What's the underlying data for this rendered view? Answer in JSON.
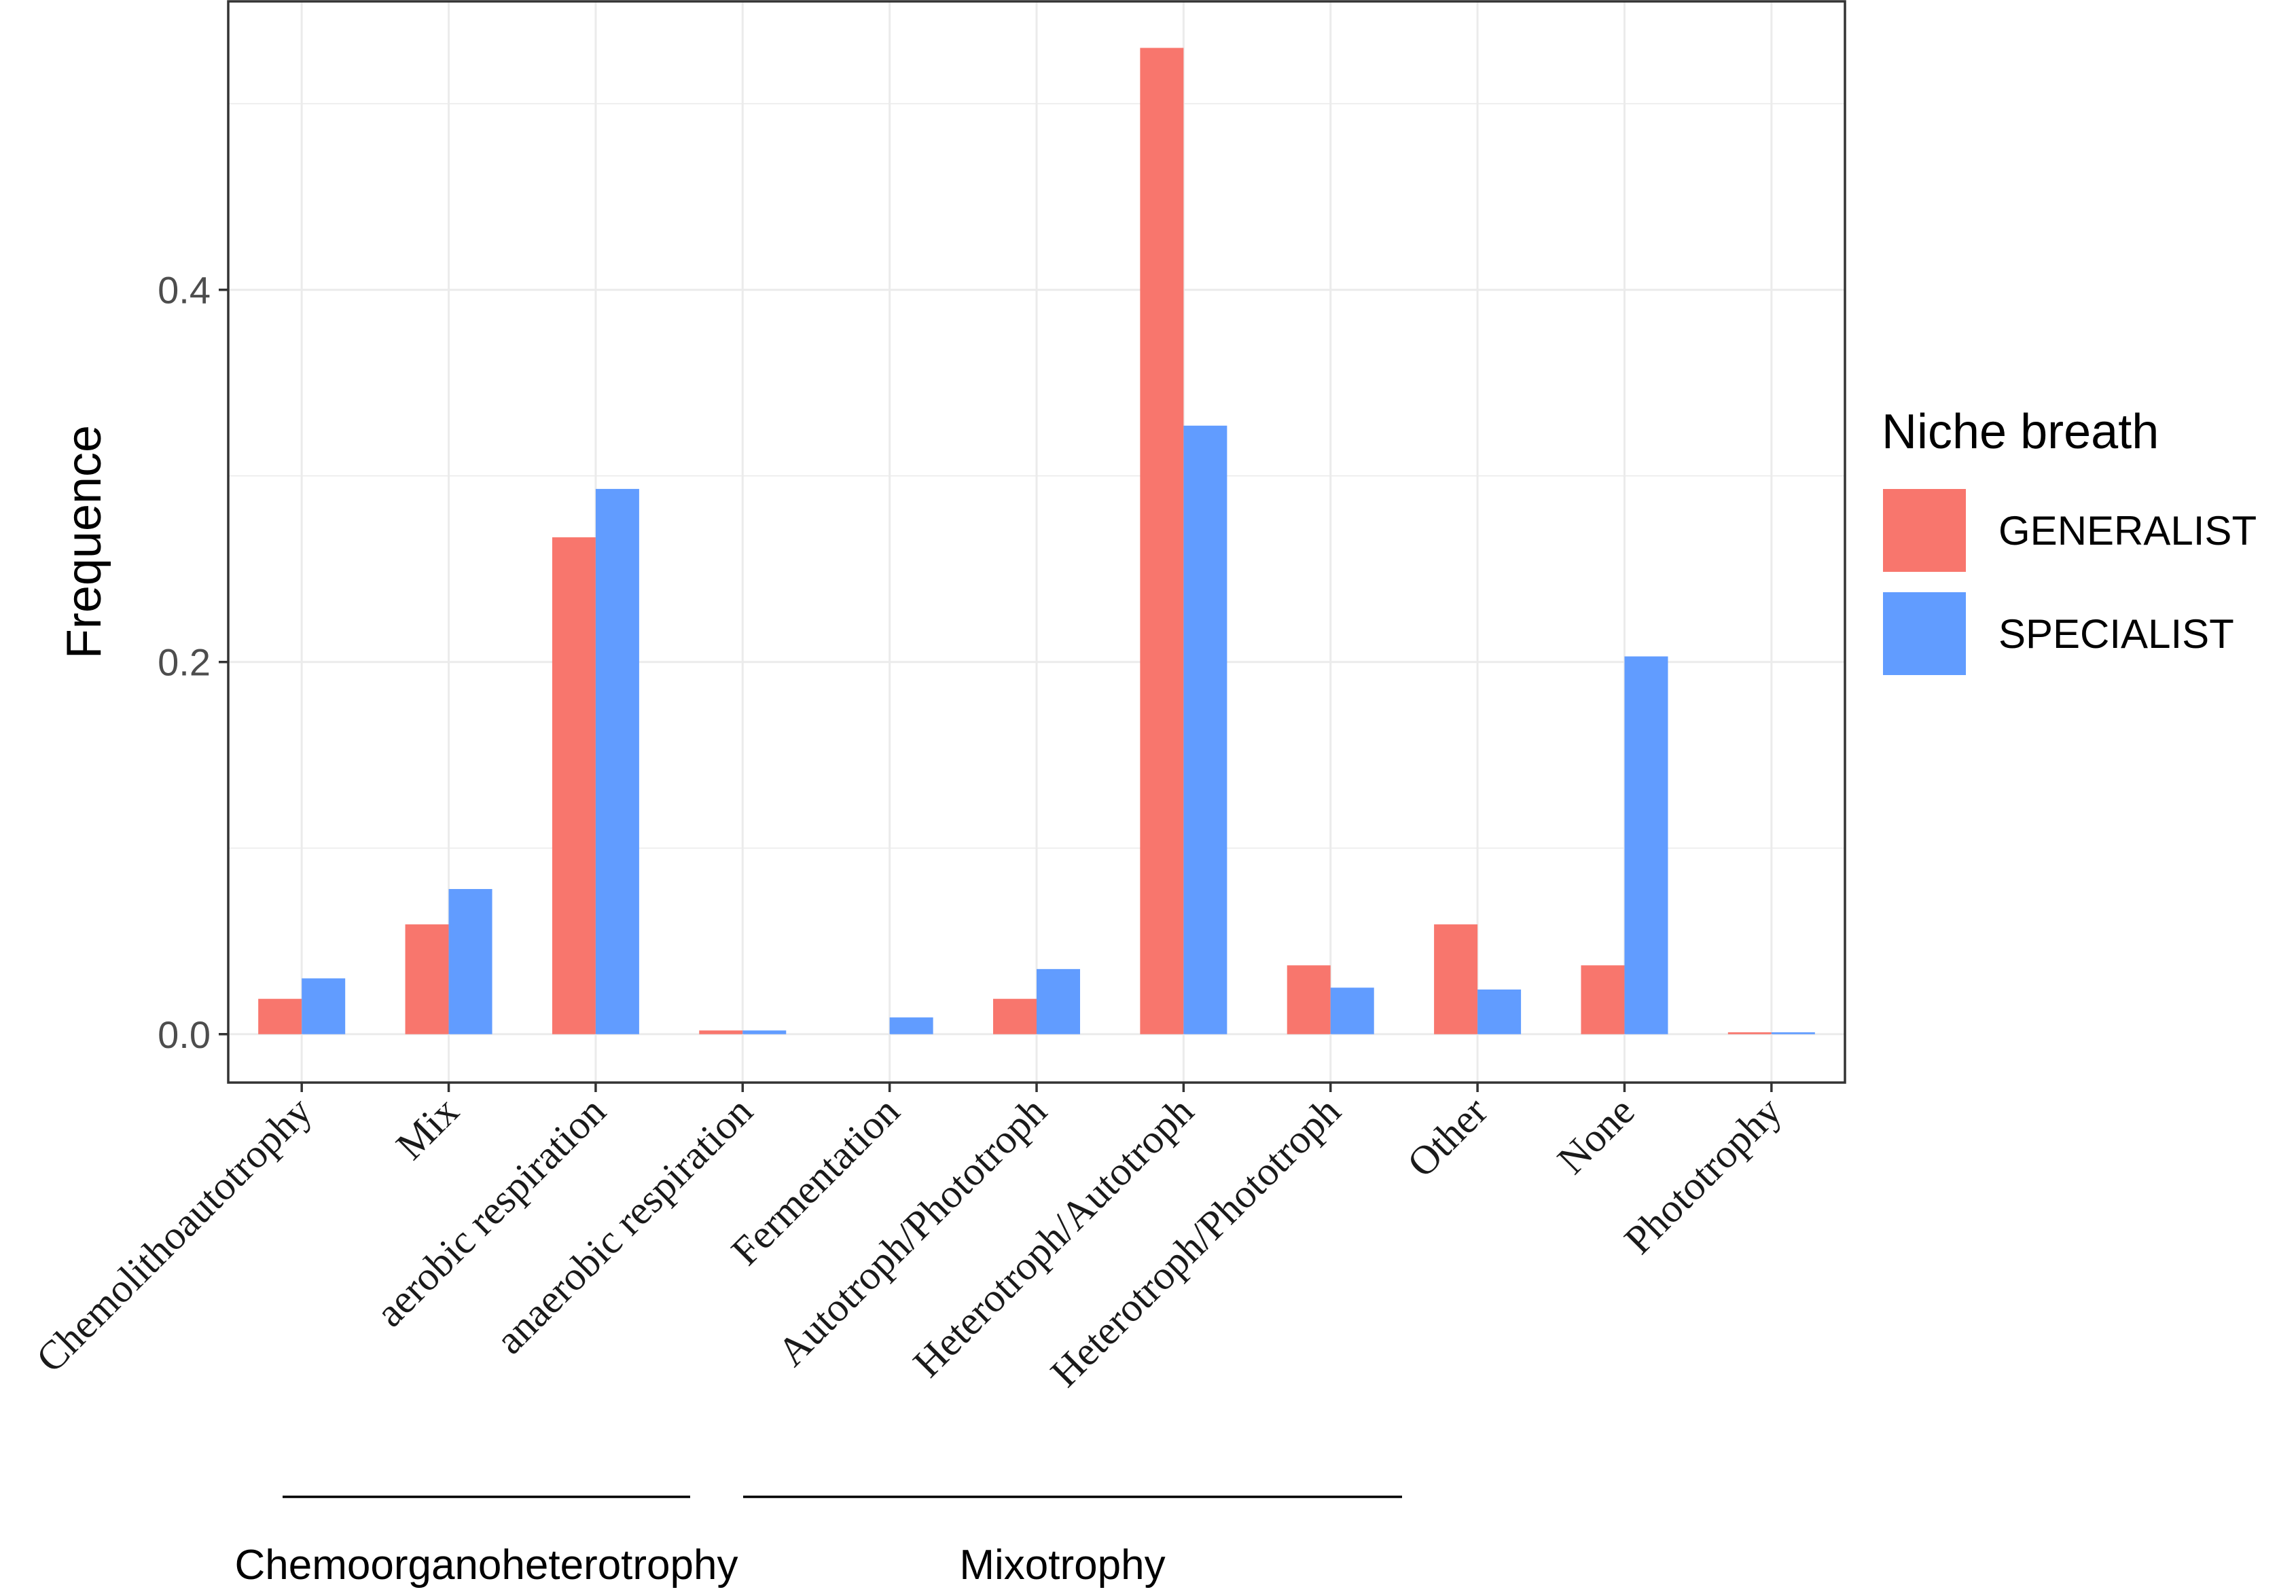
{
  "chart_data": {
    "type": "bar",
    "title": "",
    "xlabel": "",
    "ylabel": "Frequence",
    "ylim": [
      -0.026,
      0.555
    ],
    "yticks": [
      0.0,
      0.2,
      0.4
    ],
    "ytick_labels": [
      "0.0",
      "0.2",
      "0.4"
    ],
    "grid": true,
    "legend_title": "Niche breath",
    "legend_position": "right",
    "categories": [
      "Chemolithoautotrophy",
      "Mix",
      "aerobic respiration",
      "anaerobic respiration",
      "Fermentation",
      "Autotroph/Phototroph",
      "Heterotroph/Autotroph",
      "Heterotroph/Phototroph",
      "Other",
      "None",
      "Phototrophy"
    ],
    "series": [
      {
        "name": "GENERALIST",
        "color": "#F8766D",
        "values": [
          0.019,
          0.059,
          0.267,
          0.002,
          0.0,
          0.019,
          0.53,
          0.037,
          0.059,
          0.037,
          0.001
        ]
      },
      {
        "name": "SPECIALIST",
        "color": "#619CFF",
        "values": [
          0.03,
          0.078,
          0.293,
          0.002,
          0.009,
          0.035,
          0.327,
          0.025,
          0.024,
          0.203,
          0.001
        ]
      }
    ],
    "category_groups": [
      {
        "label": "Chemoorganoheterotrophy",
        "from": "Mix",
        "to": "anaerobic respiration"
      },
      {
        "label": "Mixotrophy",
        "from": "Fermentation",
        "to": "Heterotroph/Phototroph"
      }
    ]
  }
}
